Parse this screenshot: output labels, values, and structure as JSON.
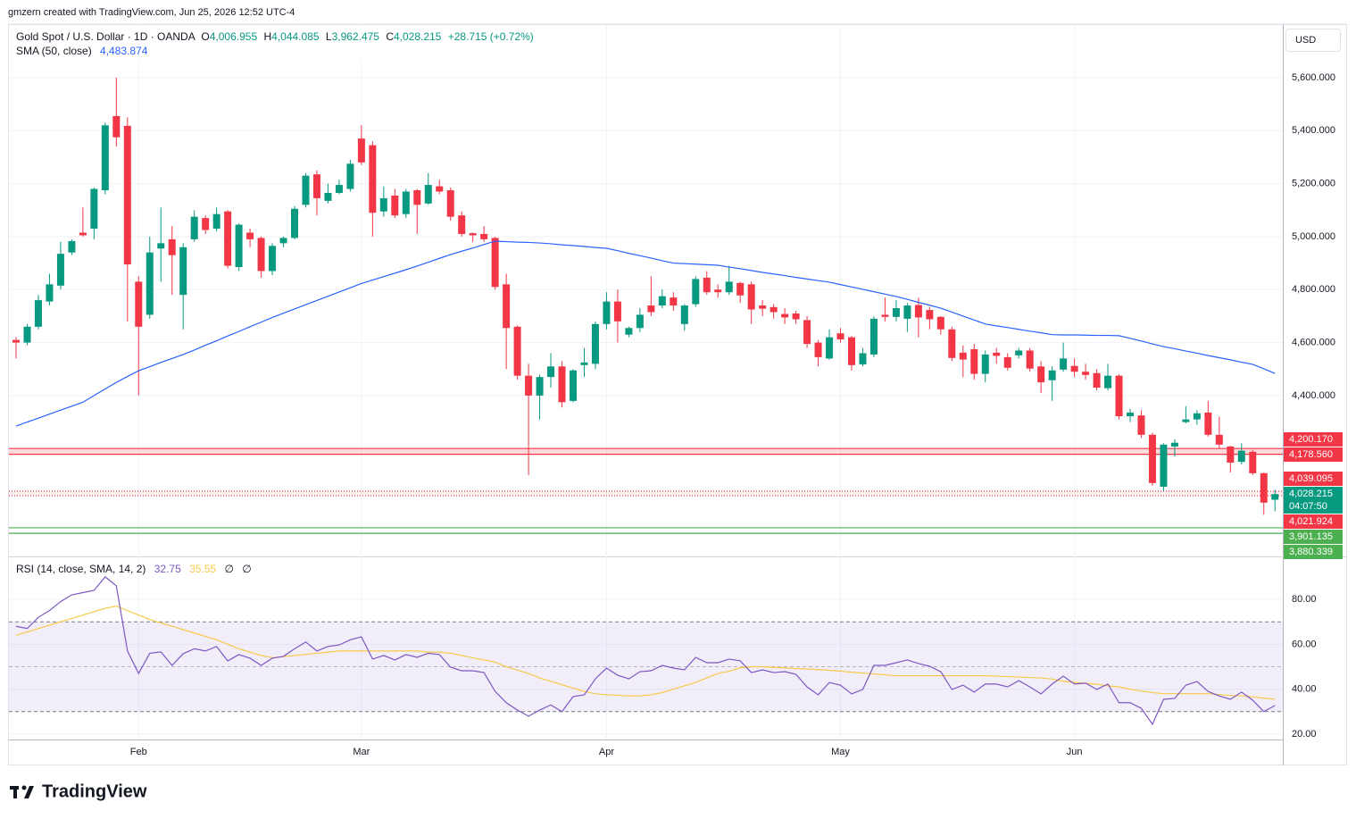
{
  "header": {
    "attribution": "gmzern created with TradingView.com, Jun 25, 2026 12:52 UTC-4"
  },
  "logo": "TradingView",
  "chart_data": {
    "type": "candlestick",
    "currency": "USD",
    "legend": {
      "symbol": "Gold Spot / U.S. Dollar · 1D · OANDA",
      "o_label": "O",
      "o": "4,006.955",
      "h_label": "H",
      "h": "4,044.085",
      "l_label": "L",
      "l": "3,962.475",
      "c_label": "C",
      "c": "4,028.215",
      "change": "+28.715 (+0.72%)"
    },
    "categories": [
      null,
      null,
      null,
      null,
      null,
      null,
      null,
      null,
      null,
      null,
      null,
      "Feb",
      null,
      null,
      null,
      null,
      null,
      null,
      null,
      null,
      null,
      null,
      null,
      null,
      null,
      null,
      null,
      null,
      null,
      null,
      null,
      "Mar",
      null,
      null,
      null,
      null,
      null,
      null,
      null,
      null,
      null,
      null,
      null,
      null,
      null,
      null,
      null,
      null,
      null,
      null,
      null,
      null,
      null,
      "Apr",
      null,
      null,
      null,
      null,
      null,
      null,
      null,
      null,
      null,
      null,
      null,
      null,
      null,
      null,
      null,
      null,
      null,
      null,
      null,
      null,
      "May",
      null,
      null,
      null,
      null,
      null,
      null,
      null,
      null,
      null,
      null,
      null,
      null,
      null,
      null,
      null,
      null,
      null,
      null,
      null,
      null,
      "Jun",
      null,
      null,
      null,
      null,
      null,
      null,
      null,
      null,
      null,
      null,
      null,
      null,
      null,
      null,
      null,
      null,
      null,
      null
    ],
    "open": [
      4610,
      4600,
      4660,
      4755,
      4815,
      4940,
      5015,
      5030,
      5175,
      5455,
      5418,
      4830,
      4705,
      4955,
      4990,
      4780,
      4990,
      5070,
      5030,
      5095,
      4885,
      5015,
      4995,
      4870,
      4975,
      4995,
      5120,
      5235,
      5135,
      5165,
      5180,
      5370,
      5345,
      5095,
      5155,
      5085,
      5175,
      5125,
      5190,
      5175,
      5080,
      5013,
      5010,
      4995,
      4820,
      4660,
      4475,
      4400,
      4470,
      4510,
      4380,
      4515,
      4520,
      4670,
      4755,
      4630,
      4655,
      4740,
      4740,
      4770,
      4670,
      4745,
      4845,
      4800,
      4790,
      4825,
      4820,
      4740,
      4734,
      4708,
      4710,
      4685,
      4600,
      4540,
      4635,
      4620,
      4518,
      4555,
      4705,
      4697,
      4690,
      4742,
      4723,
      4697,
      4650,
      4562,
      4575,
      4482,
      4562,
      4545,
      4552,
      4570,
      4510,
      4458,
      4498,
      4512,
      4490,
      4485,
      4428,
      4475,
      4322,
      4325,
      4252,
      4056,
      4208,
      4300,
      4310,
      4336,
      4252,
      4208,
      4150,
      4188,
      4107,
      4006.955
    ],
    "high": [
      4620,
      4670,
      4780,
      4860,
      4980,
      4990,
      5110,
      5185,
      5430,
      5600,
      5450,
      4850,
      5000,
      5110,
      5040,
      4975,
      5100,
      5080,
      5110,
      5100,
      5050,
      5030,
      5000,
      4975,
      5000,
      5115,
      5240,
      5250,
      5200,
      5215,
      5290,
      5420,
      5360,
      5190,
      5180,
      5180,
      5180,
      5240,
      5215,
      5185,
      5095,
      5015,
      5040,
      5000,
      4860,
      4665,
      4520,
      4480,
      4560,
      4530,
      4500,
      4580,
      4680,
      4790,
      4800,
      4660,
      4730,
      4850,
      4800,
      4790,
      4745,
      4850,
      4870,
      4820,
      4890,
      4830,
      4830,
      4760,
      4745,
      4730,
      4720,
      4700,
      4610,
      4650,
      4655,
      4625,
      4580,
      4700,
      4770,
      4760,
      4750,
      4770,
      4735,
      4700,
      4660,
      4590,
      4595,
      4570,
      4580,
      4560,
      4580,
      4580,
      4530,
      4510,
      4600,
      4540,
      4520,
      4500,
      4520,
      4480,
      4350,
      4345,
      4260,
      4220,
      4235,
      4360,
      4345,
      4380,
      4320,
      4210,
      4220,
      4195,
      4110,
      4044.085
    ],
    "low": [
      4540,
      4590,
      4650,
      4740,
      4800,
      4930,
      5000,
      4990,
      5160,
      5340,
      4680,
      4400,
      4690,
      4830,
      4780,
      4650,
      4980,
      5010,
      5020,
      4880,
      4870,
      4960,
      4845,
      4855,
      4960,
      4990,
      5110,
      5080,
      5125,
      5160,
      5170,
      5270,
      5000,
      5075,
      5070,
      5070,
      5010,
      5120,
      5160,
      5060,
      5000,
      4980,
      4980,
      4800,
      4500,
      4460,
      4100,
      4310,
      4430,
      4355,
      4375,
      4470,
      4500,
      4650,
      4600,
      4620,
      4640,
      4700,
      4730,
      4720,
      4645,
      4735,
      4780,
      4770,
      4780,
      4750,
      4670,
      4700,
      4690,
      4670,
      4670,
      4580,
      4510,
      4535,
      4600,
      4495,
      4510,
      4545,
      4680,
      4680,
      4640,
      4620,
      4650,
      4630,
      4530,
      4470,
      4460,
      4450,
      4520,
      4495,
      4540,
      4490,
      4410,
      4380,
      4490,
      4470,
      4460,
      4420,
      4420,
      4310,
      4300,
      4240,
      4060,
      4040,
      4170,
      4295,
      4290,
      4245,
      4200,
      4110,
      4140,
      4100,
      3950,
      3962.475
    ],
    "close": [
      4600,
      4660,
      4760,
      4820,
      4935,
      4983,
      5005,
      5180,
      5420,
      5375,
      4895,
      4660,
      4940,
      4975,
      4930,
      4960,
      5075,
      5025,
      5085,
      4890,
      5045,
      4990,
      4870,
      4965,
      4995,
      5105,
      5230,
      5145,
      5165,
      5195,
      5275,
      5280,
      5090,
      5145,
      5080,
      5170,
      5120,
      5195,
      5170,
      5075,
      5010,
      5005,
      4990,
      4810,
      4655,
      4475,
      4400,
      4470,
      4510,
      4375,
      4495,
      4525,
      4670,
      4755,
      4680,
      4655,
      4705,
      4715,
      4775,
      4740,
      4740,
      4840,
      4790,
      4790,
      4830,
      4778,
      4725,
      4728,
      4715,
      4695,
      4688,
      4595,
      4545,
      4620,
      4612,
      4515,
      4560,
      4690,
      4697,
      4730,
      4740,
      4695,
      4688,
      4650,
      4542,
      4536,
      4482,
      4555,
      4550,
      4505,
      4570,
      4502,
      4450,
      4495,
      4540,
      4490,
      4478,
      4430,
      4475,
      4322,
      4336,
      4252,
      4070,
      4215,
      4222,
      4310,
      4333,
      4252,
      4215,
      4147,
      4192,
      4107,
      3996,
      4028.215
    ],
    "up_color": "#089981",
    "down_color": "#f23645",
    "ylim": [
      3793,
      5802
    ],
    "yticks": [
      {
        "value": 4400,
        "label": "4,400.000"
      },
      {
        "value": 4600,
        "label": "4,600.000"
      },
      {
        "value": 4800,
        "label": "4,800.000"
      },
      {
        "value": 5000,
        "label": "5,000.000"
      },
      {
        "value": 5200,
        "label": "5,200.000"
      },
      {
        "value": 5400,
        "label": "5,400.000"
      },
      {
        "value": 5600,
        "label": "5,600.000"
      }
    ],
    "grid": true,
    "sma": {
      "name": "SMA (50, close)",
      "value_label": "4,483.874",
      "color": "#2962ff",
      "values": [
        4285,
        4300,
        4315,
        4330,
        4345,
        4360,
        4375,
        4400,
        4425,
        4450,
        4472,
        4494,
        4509,
        4525,
        4540,
        4555,
        4572,
        4590,
        4607,
        4625,
        4642,
        4660,
        4677,
        4695,
        4711,
        4727,
        4743,
        4759,
        4775,
        4791,
        4807,
        4823,
        4836,
        4849,
        4862,
        4875,
        4889,
        4903,
        4918,
        4932,
        4945,
        4957,
        4970,
        4983,
        4981,
        4979,
        4978,
        4976,
        4973,
        4969,
        4966,
        4963,
        4959,
        4956,
        4947,
        4937,
        4928,
        4919,
        4909,
        4900,
        4898,
        4896,
        4894,
        4892,
        4885,
        4879,
        4872,
        4865,
        4859,
        4853,
        4846,
        4840,
        4834,
        4828,
        4819,
        4810,
        4801,
        4792,
        4783,
        4774,
        4763,
        4752,
        4741,
        4730,
        4715,
        4700,
        4685,
        4670,
        4663,
        4657,
        4650,
        4643,
        4637,
        4630,
        4629,
        4629,
        4628,
        4627,
        4627,
        4626,
        4616,
        4606,
        4595,
        4585,
        4577,
        4568,
        4560,
        4551,
        4543,
        4535,
        4526,
        4518,
        4501,
        4483.874
      ]
    },
    "zones": [
      {
        "top": {
          "value": 4200.17,
          "label": "4,200.170"
        },
        "bottom": {
          "value": 4178.56,
          "label": "4,178.560"
        },
        "color": "#f23645",
        "fill": "rgba(242,54,69,0.18)",
        "style": "solid"
      },
      {
        "top": {
          "value": 4039.095,
          "label": "4,039.095"
        },
        "bottom": {
          "value": 4021.924,
          "label": "4,021.924"
        },
        "color": "#f23645",
        "fill": "rgba(242,54,69,0.08)",
        "style": "dotted"
      },
      {
        "top": {
          "value": 3901.135,
          "label": "3,901.135"
        },
        "bottom": {
          "value": 3880.339,
          "label": "3,880.339"
        },
        "color": "#4caf50",
        "fill": null,
        "style": "solid"
      }
    ],
    "current_price": {
      "value": 4028.215,
      "label": "4,028.215",
      "countdown": "04:07:50",
      "color": "#089981"
    },
    "rsi": {
      "name": "RSI (14, close, SMA, 14, 2)",
      "value_label": "32.75",
      "sma_label": "35.55",
      "extra": [
        "∅",
        "∅"
      ],
      "color": "#7e57c2",
      "sma_color": "#f7c948",
      "ylim": [
        17.6,
        99.1
      ],
      "yticks": [
        {
          "value": 20,
          "label": "20.00"
        },
        {
          "value": 40,
          "label": "40.00"
        },
        {
          "value": 60,
          "label": "60.00"
        },
        {
          "value": 80,
          "label": "80.00"
        }
      ],
      "bands": {
        "upper": 70,
        "middle": 50,
        "lower": 30
      },
      "values": [
        68,
        67,
        72,
        75,
        79,
        82,
        83,
        84,
        90,
        86,
        57,
        47,
        56,
        56.6,
        50.6,
        55.8,
        58,
        57,
        59,
        52.6,
        55.4,
        53.8,
        50.6,
        53.8,
        54.6,
        58,
        61,
        57,
        59,
        59.7,
        62,
        63.3,
        53.4,
        55,
        53,
        55.4,
        54.2,
        56,
        55.4,
        49.8,
        48.2,
        48.2,
        47.4,
        39,
        34,
        30.7,
        28,
        30.7,
        33,
        30,
        36.7,
        37.5,
        44.6,
        49.4,
        46.2,
        44.6,
        47.8,
        48.2,
        50.6,
        49.4,
        48.6,
        54.2,
        51.8,
        51.8,
        53.4,
        52.6,
        47.4,
        48.6,
        47.4,
        47.8,
        46.6,
        41,
        37.5,
        43,
        41.8,
        37.9,
        39.9,
        50.6,
        50.6,
        51.8,
        53,
        51.4,
        50.2,
        47.8,
        39.9,
        41.8,
        38.7,
        42.3,
        42.3,
        41,
        43.8,
        41,
        37.9,
        42.3,
        45.8,
        42.3,
        42.7,
        39.9,
        42.3,
        34,
        34,
        31.5,
        24.4,
        35.5,
        35.9,
        41.8,
        43.4,
        39,
        37,
        35.5,
        38.7,
        35.1,
        30,
        32.75
      ],
      "sma_values": [
        64,
        65.5,
        67,
        68.5,
        70,
        71.5,
        73,
        74.5,
        76,
        77,
        75,
        73,
        71,
        69.5,
        68,
        66.5,
        65,
        63.5,
        62,
        60,
        58,
        56.5,
        55,
        54,
        54.5,
        55,
        55.5,
        56,
        56.5,
        57,
        57,
        57,
        57,
        57,
        57,
        57,
        57,
        56.5,
        56.5,
        56,
        55,
        54,
        53,
        52,
        50,
        48.5,
        47,
        45,
        43.5,
        42,
        40.5,
        39,
        38,
        37.5,
        37.3,
        37,
        37,
        37.5,
        38.5,
        40,
        41.5,
        43,
        45,
        47,
        48,
        49.5,
        50,
        50,
        49.7,
        49.5,
        49.2,
        49,
        48.7,
        48.4,
        48,
        47.6,
        47.2,
        46.8,
        46.4,
        46,
        46,
        46,
        46,
        46,
        46,
        46,
        46,
        46,
        45.8,
        45.6,
        45.4,
        45.2,
        45,
        44.5,
        43.5,
        43,
        42.6,
        42.2,
        41.5,
        41,
        40,
        39.2,
        38.5,
        38,
        38,
        38,
        38,
        38,
        37.6,
        37.2,
        37,
        36.6,
        36,
        35.55
      ]
    }
  }
}
